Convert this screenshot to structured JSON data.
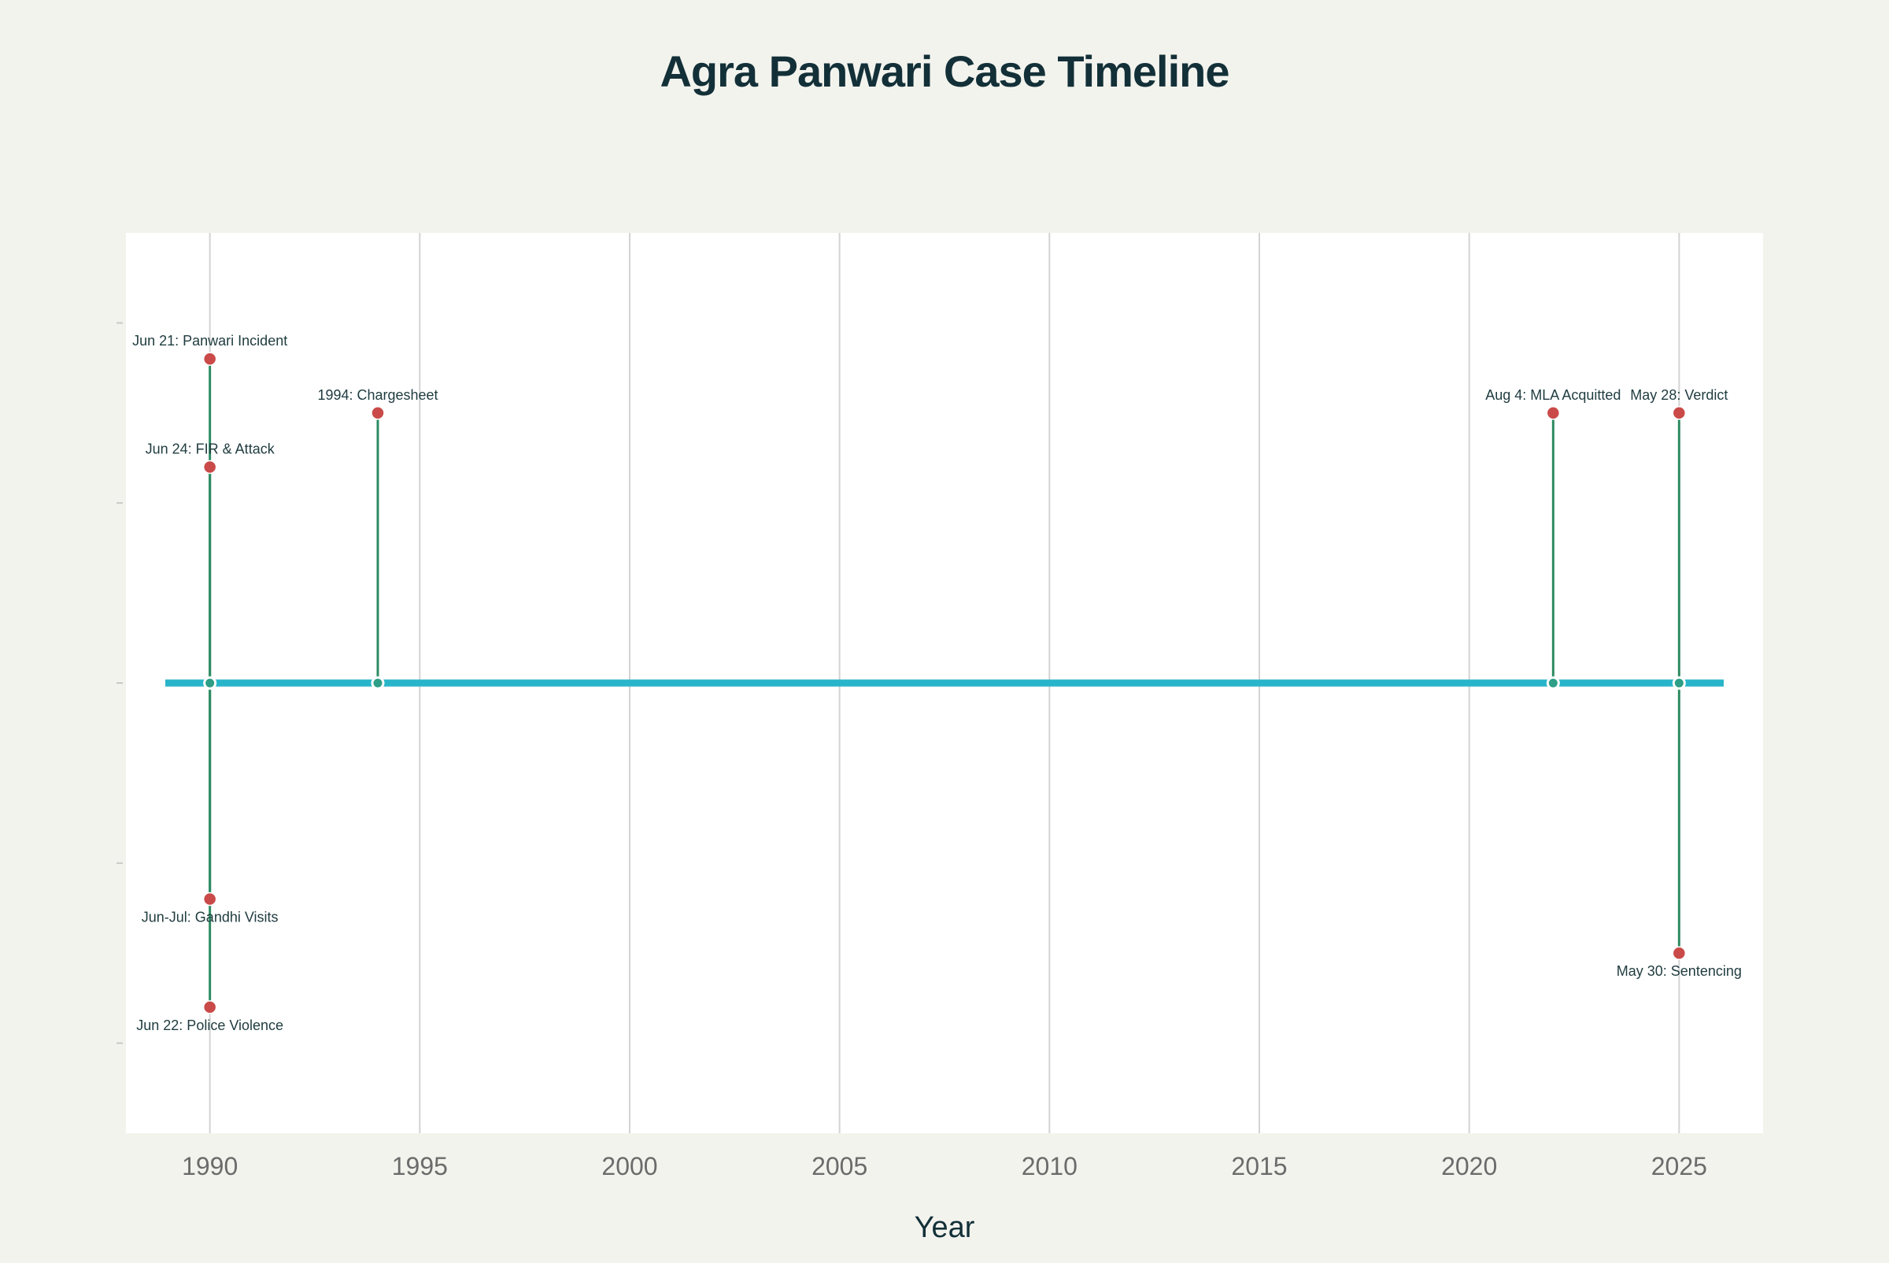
{
  "chart_data": {
    "type": "timeline",
    "title": "Agra Panwari Case Timeline",
    "xlabel": "Year",
    "ylabel": "",
    "xlim": [
      1988,
      2027
    ],
    "ylim": [
      -5,
      5
    ],
    "x_ticks": [
      1990,
      1995,
      2000,
      2005,
      2010,
      2015,
      2020,
      2025
    ],
    "y_ticks": [
      -4,
      -2,
      0,
      2,
      4
    ],
    "grid": {
      "x": true,
      "y": false
    },
    "colors": {
      "baseline": "#29b5c9",
      "stem": "#2e8b62",
      "marker": "#c94a48",
      "anchor": "#2e9e86",
      "plot_background": "#ffffff",
      "page_background": "#f3f3ee",
      "grid": "#d3d3d3",
      "title": "#133038",
      "tick_label": "#6b6b6b",
      "annotation": "#1f3b3f"
    },
    "events": [
      {
        "year": 1990,
        "level": 3.6,
        "label": "Jun 21: Panwari Incident"
      },
      {
        "year": 1990,
        "level": 2.4,
        "label": "Jun 24: FIR & Attack"
      },
      {
        "year": 1990,
        "level": -2.4,
        "label": "Jun-Jul: Gandhi Visits"
      },
      {
        "year": 1990,
        "level": -3.6,
        "label": "Jun 22: Police Violence"
      },
      {
        "year": 1994,
        "level": 3.0,
        "label": "1994: Chargesheet"
      },
      {
        "year": 2022,
        "level": 3.0,
        "label": "Aug 4: MLA Acquitted"
      },
      {
        "year": 2025,
        "level": 3.0,
        "label": "May 28: Verdict"
      },
      {
        "year": 2025,
        "level": -3.0,
        "label": "May 30: Sentencing"
      }
    ]
  }
}
